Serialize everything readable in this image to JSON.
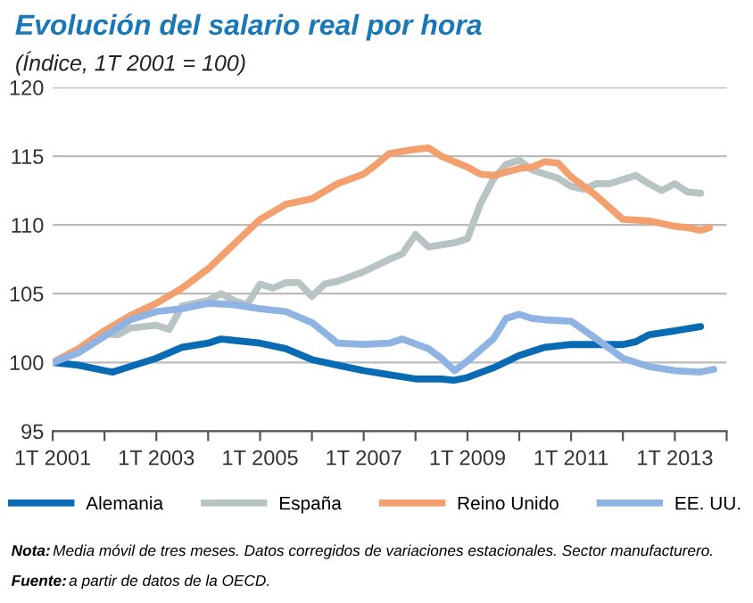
{
  "chart_data": {
    "type": "line",
    "title": "Evolución del salario real por hora",
    "subtitle": "(Índice, 1T 2001 = 100)",
    "xlim": [
      "2001-01",
      "2014-01"
    ],
    "xticks": [
      {
        "value": "2001-01",
        "label": "1T 2001"
      },
      {
        "value": "2002-01",
        "label": null
      },
      {
        "value": "2003-01",
        "label": "1T 2003"
      },
      {
        "value": "2004-01",
        "label": null
      },
      {
        "value": "2005-01",
        "label": "1T 2005"
      },
      {
        "value": "2006-01",
        "label": null
      },
      {
        "value": "2007-01",
        "label": "1T 2007"
      },
      {
        "value": "2008-01",
        "label": null
      },
      {
        "value": "2009-01",
        "label": "1T 2009"
      },
      {
        "value": "2010-01",
        "label": null
      },
      {
        "value": "2011-01",
        "label": "1T 2011"
      },
      {
        "value": "2012-01",
        "label": null
      },
      {
        "value": "2013-01",
        "label": "1T 2013"
      },
      {
        "value": "2014-01",
        "label": null
      }
    ],
    "ylim": [
      95,
      120
    ],
    "yticks": [
      95,
      100,
      105,
      110,
      115,
      120
    ],
    "grid": "y",
    "legend": "bottom",
    "series": [
      {
        "name": "Alemania",
        "color": "#0a6bb5",
        "x": [
          "2001-01",
          "2001-07",
          "2002-01",
          "2002-03",
          "2002-07",
          "2003-01",
          "2003-07",
          "2004-01",
          "2004-04",
          "2005-01",
          "2005-07",
          "2006-01",
          "2006-07",
          "2007-01",
          "2007-07",
          "2008-01",
          "2008-07",
          "2008-10",
          "2009-01",
          "2009-07",
          "2010-01",
          "2010-07",
          "2011-01",
          "2011-07",
          "2012-01",
          "2012-04",
          "2012-07",
          "2013-01",
          "2013-07"
        ],
        "values": [
          100,
          99.8,
          99.4,
          99.3,
          99.7,
          100.3,
          101.1,
          101.4,
          101.7,
          101.4,
          101.0,
          100.2,
          99.8,
          99.4,
          99.1,
          98.8,
          98.8,
          98.7,
          98.9,
          99.6,
          100.5,
          101.1,
          101.3,
          101.3,
          101.3,
          101.5,
          102.0,
          102.3,
          102.6
        ]
      },
      {
        "name": "España",
        "color": "#b8c4c4",
        "x": [
          "2001-01",
          "2001-07",
          "2002-01",
          "2002-04",
          "2002-07",
          "2003-01",
          "2003-04",
          "2003-07",
          "2004-01",
          "2004-04",
          "2004-07",
          "2004-10",
          "2005-01",
          "2005-04",
          "2005-07",
          "2005-10",
          "2006-01",
          "2006-04",
          "2006-07",
          "2007-01",
          "2007-07",
          "2007-10",
          "2008-01",
          "2008-04",
          "2008-10",
          "2009-01",
          "2009-04",
          "2009-07",
          "2009-10",
          "2010-01",
          "2010-04",
          "2010-07",
          "2010-10",
          "2011-01",
          "2011-04",
          "2011-07",
          "2011-10",
          "2012-01",
          "2012-04",
          "2012-07",
          "2012-10",
          "2013-01",
          "2013-04",
          "2013-07"
        ],
        "values": [
          100,
          100.8,
          102.1,
          102.0,
          102.5,
          102.7,
          102.4,
          104.1,
          104.5,
          105.0,
          104.5,
          104.2,
          105.7,
          105.4,
          105.8,
          105.8,
          104.8,
          105.7,
          105.9,
          106.6,
          107.5,
          107.9,
          109.3,
          108.4,
          108.7,
          109.0,
          111.5,
          113.3,
          114.4,
          114.7,
          114.0,
          113.7,
          113.4,
          112.8,
          112.6,
          113.0,
          113.0,
          113.3,
          113.6,
          113.0,
          112.5,
          113.0,
          112.4,
          112.3
        ]
      },
      {
        "name": "Reino Unido",
        "color": "#f4a06e",
        "x": [
          "2001-01",
          "2001-07",
          "2002-01",
          "2002-07",
          "2003-01",
          "2003-07",
          "2004-01",
          "2004-07",
          "2005-01",
          "2005-07",
          "2006-01",
          "2006-07",
          "2007-01",
          "2007-04",
          "2007-07",
          "2008-01",
          "2008-04",
          "2008-07",
          "2009-01",
          "2009-04",
          "2009-07",
          "2010-01",
          "2010-04",
          "2010-07",
          "2010-10",
          "2011-01",
          "2011-07",
          "2012-01",
          "2012-07",
          "2013-01",
          "2013-04",
          "2013-07",
          "2013-09"
        ],
        "values": [
          100,
          101.0,
          102.3,
          103.4,
          104.3,
          105.4,
          106.8,
          108.6,
          110.4,
          111.5,
          111.9,
          113.0,
          113.7,
          114.4,
          115.2,
          115.5,
          115.6,
          115.0,
          114.2,
          113.7,
          113.6,
          114.1,
          114.2,
          114.6,
          114.5,
          113.5,
          112.1,
          110.4,
          110.3,
          109.9,
          109.8,
          109.6,
          109.8
        ]
      },
      {
        "name": "EE. UU.",
        "color": "#8fb3e3",
        "x": [
          "2001-01",
          "2001-07",
          "2002-01",
          "2002-07",
          "2003-01",
          "2003-07",
          "2004-01",
          "2004-07",
          "2005-01",
          "2005-07",
          "2006-01",
          "2006-07",
          "2007-01",
          "2007-07",
          "2007-10",
          "2008-04",
          "2008-07",
          "2008-10",
          "2009-01",
          "2009-07",
          "2009-10",
          "2010-01",
          "2010-04",
          "2010-07",
          "2011-01",
          "2011-07",
          "2012-01",
          "2012-07",
          "2013-01",
          "2013-07",
          "2013-10"
        ],
        "values": [
          100,
          100.7,
          101.9,
          103.1,
          103.7,
          103.9,
          104.3,
          104.2,
          103.9,
          103.7,
          102.9,
          101.4,
          101.3,
          101.4,
          101.7,
          101.0,
          100.3,
          99.4,
          100.1,
          101.7,
          103.2,
          103.5,
          103.2,
          103.1,
          103.0,
          101.7,
          100.3,
          99.7,
          99.4,
          99.3,
          99.5
        ]
      }
    ],
    "annotations": [
      "Nota: Media móvil de tres meses. Datos corregidos de variaciones estacionales. Sector manufacturero.",
      "Fuente: a partir de datos de la OECD."
    ]
  }
}
